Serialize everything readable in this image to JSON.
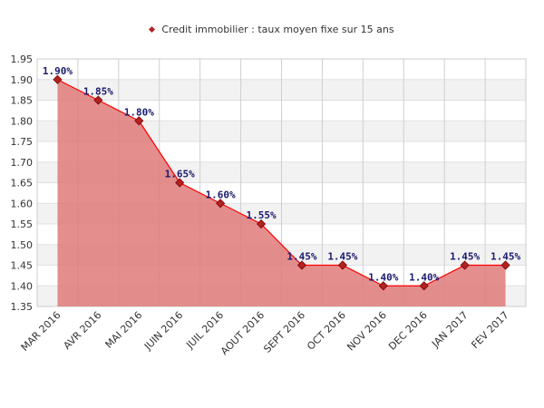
{
  "legend": {
    "label": "Credit immobilier : taux moyen fixe sur 15 ans",
    "marker_color": "#b22222"
  },
  "chart_data": {
    "type": "area",
    "categories": [
      "MAR 2016",
      "AVR 2016",
      "MAI 2016",
      "JUIN 2016",
      "JUIL 2016",
      "AOUT 2016",
      "SEPT 2016",
      "OCT 2016",
      "NOV 2016",
      "DEC 2016",
      "JAN 2017",
      "FEV 2017"
    ],
    "series": [
      {
        "name": "Credit immobilier : taux moyen fixe sur 15 ans",
        "values": [
          1.9,
          1.85,
          1.8,
          1.65,
          1.6,
          1.55,
          1.45,
          1.45,
          1.4,
          1.4,
          1.45,
          1.45
        ],
        "data_labels": [
          "1.90%",
          "1.85%",
          "1.80%",
          "1.65%",
          "1.60%",
          "1.55%",
          "1.45%",
          "1.45%",
          "1.40%",
          "1.40%",
          "1.45%",
          "1.45%"
        ],
        "line_color": "#ff0000",
        "fill_color": "#e07a7a",
        "marker_color": "#b22222"
      }
    ],
    "ylim": [
      1.35,
      1.95
    ],
    "yticks": [
      "1.95",
      "1.90",
      "1.85",
      "1.80",
      "1.75",
      "1.70",
      "1.65",
      "1.60",
      "1.55",
      "1.50",
      "1.45",
      "1.40",
      "1.35"
    ],
    "grid": true,
    "legend_position": "top-center"
  }
}
